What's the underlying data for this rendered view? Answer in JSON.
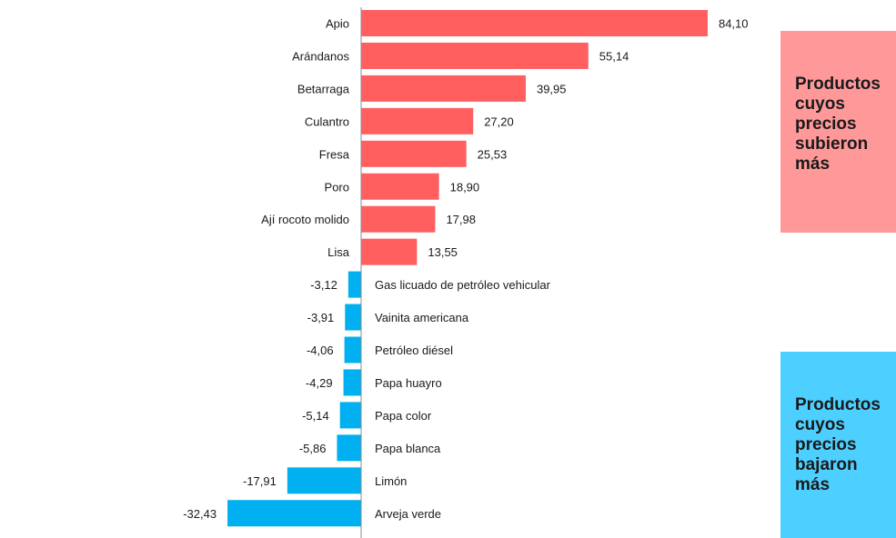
{
  "chart_data": {
    "type": "bar",
    "orientation": "horizontal",
    "categories": [
      "Apio",
      "Arándanos",
      "Betarraga",
      "Culantro",
      "Fresa",
      "Poro",
      "Ají rocoto molido",
      "Lisa",
      "Gas licuado de petróleo vehicular",
      "Vainita americana",
      "Petróleo diésel",
      "Papa huayro",
      "Papa color",
      "Papa blanca",
      "Limón",
      "Arveja verde"
    ],
    "values": [
      84.1,
      55.14,
      39.95,
      27.2,
      25.53,
      18.9,
      17.98,
      13.55,
      -3.12,
      -3.91,
      -4.06,
      -4.29,
      -5.14,
      -5.86,
      -17.91,
      -32.43
    ],
    "value_labels": [
      "84,10",
      "55,14",
      "39,95",
      "27,20",
      "25,53",
      "18,90",
      "17,98",
      "13,55",
      "-3,12",
      "-3,91",
      "-4,06",
      "-4,29",
      "-5,14",
      "-5,86",
      "-17,91",
      "-32,43"
    ],
    "colors": {
      "positive": "#ff5f5f",
      "negative": "#00b0f0",
      "axis": "#8c8c8c"
    },
    "grid": false,
    "legend": [
      {
        "text": "Productos cuyos precios subieron más",
        "color": "#ff9999",
        "placement": "right-top"
      },
      {
        "text": "Productos cuyos precios bajaron más",
        "color": "#4dcfff",
        "placement": "right-bottom"
      }
    ]
  }
}
